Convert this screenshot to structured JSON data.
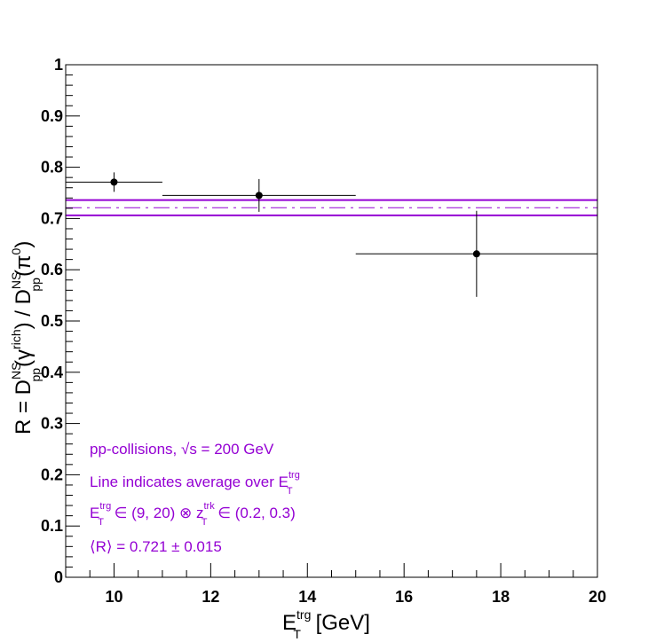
{
  "chart_data": {
    "type": "scatter",
    "xlim": [
      9,
      20
    ],
    "ylim": [
      0,
      1
    ],
    "xticks": [
      "10",
      "12",
      "14",
      "16",
      "18",
      "20"
    ],
    "yticks": [
      "0",
      "0.1",
      "0.2",
      "0.3",
      "0.4",
      "0.5",
      "0.6",
      "0.7",
      "0.8",
      "0.9",
      "1"
    ],
    "xlabel": {
      "main": "E",
      "sup": "trg",
      "sub": "T",
      "unit": " [GeV]"
    },
    "ylabel": {
      "prefix": "R = D",
      "num_sup": "NS",
      "num_sub": "pp",
      "num_arg_open": "(γ",
      "num_arg_sup": "rich",
      "num_arg_close": ") / D",
      "den_sup": "NS",
      "den_sub": "pp",
      "den_arg_open": "(π",
      "den_arg_sup": "0",
      "den_arg_close": ")"
    },
    "points": [
      {
        "x": 10.0,
        "xlo": 9.0,
        "xhi": 11.0,
        "y": 0.771,
        "ylo": 0.752,
        "yhi": 0.79
      },
      {
        "x": 13.0,
        "xlo": 11.0,
        "xhi": 15.0,
        "y": 0.745,
        "ylo": 0.713,
        "yhi": 0.777
      },
      {
        "x": 17.5,
        "xlo": 15.0,
        "xhi": 20.0,
        "y": 0.631,
        "ylo": 0.547,
        "yhi": 0.715
      }
    ],
    "average": {
      "value": 0.721,
      "error": 0.015,
      "color": "#9400d3"
    },
    "annotations": {
      "line1": "pp-collisions, √s = 200 GeV",
      "line2_main": "Line indicates average over E",
      "line2_sup": "trg",
      "line2_sub": "T",
      "line3_e": "E",
      "line3_e_sup": "trg",
      "line3_e_sub": "T",
      "line3_mid": " ∈ (9, 20) ⊗ z",
      "line3_z_sup": "trk",
      "line3_z_sub": "T",
      "line3_end": " ∈ (0.2, 0.3)",
      "line4": "⟨R⟩ = 0.721 ± 0.015"
    },
    "grid": false,
    "legend": "none"
  }
}
